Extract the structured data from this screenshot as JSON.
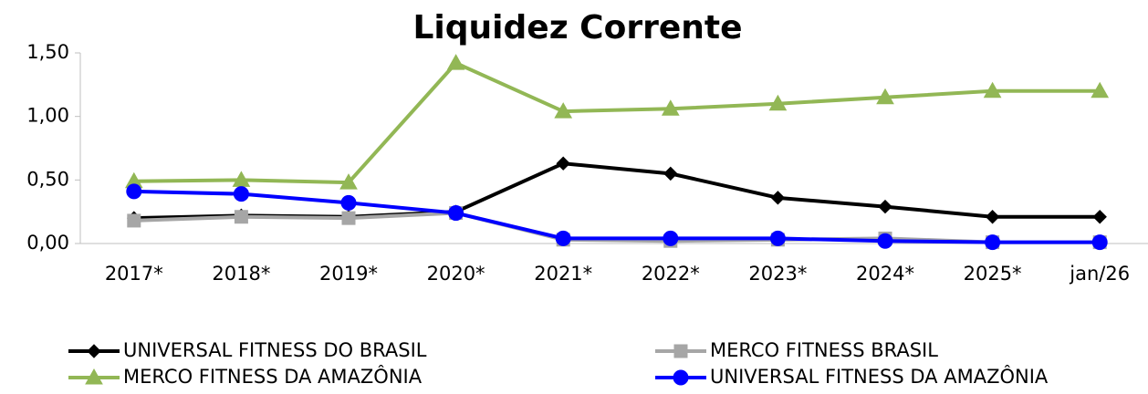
{
  "chart_data": {
    "type": "line",
    "title": "Liquidez Corrente",
    "categories": [
      "2017*",
      "2018*",
      "2019*",
      "2020*",
      "2021*",
      "2022*",
      "2023*",
      "2024*",
      "2025*",
      "jan/26"
    ],
    "series": [
      {
        "name": "UNIVERSAL FITNESS DO BRASIL",
        "color": "#000000",
        "marker": "diamond",
        "values": [
          0.2,
          0.22,
          0.21,
          0.25,
          0.63,
          0.55,
          0.36,
          0.29,
          0.21,
          0.21
        ]
      },
      {
        "name": "MERCO FITNESS BRASIL",
        "color": "#a6a6a6",
        "marker": "square",
        "values": [
          0.18,
          0.21,
          0.2,
          0.24,
          0.03,
          0.02,
          0.03,
          0.04,
          0.01,
          0.01
        ]
      },
      {
        "name": "MERCO FITNESS DA AMAZÔNIA",
        "color": "#92b755",
        "marker": "triangle",
        "values": [
          0.49,
          0.5,
          0.48,
          1.42,
          1.04,
          1.06,
          1.1,
          1.15,
          1.2,
          1.2
        ]
      },
      {
        "name": "UNIVERSAL FITNESS DA AMAZÔNIA",
        "color": "#0000ff",
        "marker": "circle",
        "values": [
          0.41,
          0.39,
          0.32,
          0.24,
          0.04,
          0.04,
          0.04,
          0.02,
          0.01,
          0.01
        ]
      }
    ],
    "ylim": [
      0,
      1.5
    ],
    "yticks": [
      {
        "value": 0,
        "label": "0,00"
      },
      {
        "value": 0.5,
        "label": "0,50"
      },
      {
        "value": 1,
        "label": "1,00"
      },
      {
        "value": 1.5,
        "label": "1,50"
      }
    ],
    "legend": "bottom"
  }
}
